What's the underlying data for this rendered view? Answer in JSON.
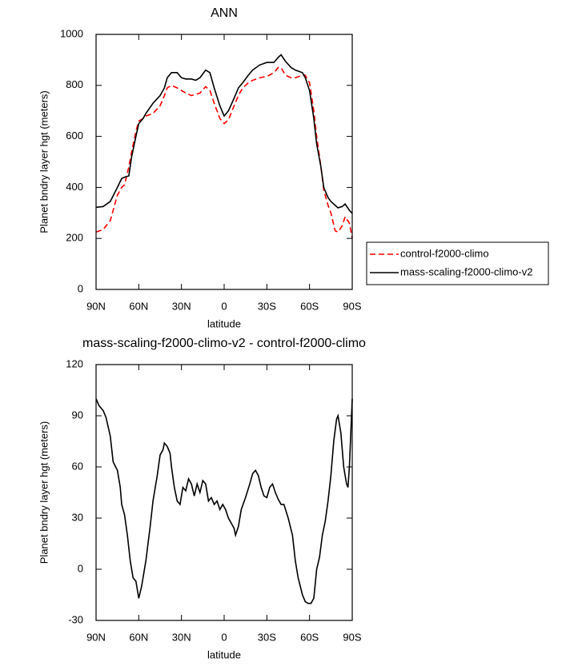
{
  "chart_data": [
    {
      "type": "line",
      "title": "ANN",
      "x_label": "latitude",
      "y_label": "Planet bndry layer hgt (meters)",
      "x": [
        90,
        85,
        80,
        75,
        72,
        70,
        67,
        65,
        62,
        60,
        57,
        55,
        50,
        45,
        42,
        40,
        37,
        33,
        30,
        27,
        23,
        20,
        17,
        13,
        10,
        7,
        3,
        0,
        -3,
        -7,
        -10,
        -13,
        -17,
        -20,
        -25,
        -30,
        -35,
        -38,
        -40,
        -43,
        -47,
        -50,
        -55,
        -57,
        -60,
        -63,
        -65,
        -68,
        -70,
        -73,
        -75,
        -78,
        -80,
        -83,
        -85,
        -88,
        -90
      ],
      "series": [
        {
          "name": "control-f2000-climo",
          "color": "#ff0000",
          "line_style": "dashed",
          "values": [
            225,
            235,
            270,
            370,
            400,
            410,
            480,
            540,
            620,
            660,
            670,
            680,
            690,
            720,
            760,
            790,
            800,
            790,
            780,
            770,
            760,
            765,
            770,
            795,
            780,
            730,
            670,
            650,
            665,
            720,
            760,
            790,
            810,
            820,
            830,
            835,
            850,
            870,
            870,
            840,
            830,
            830,
            840,
            840,
            810,
            700,
            600,
            480,
            390,
            330,
            300,
            230,
            225,
            250,
            285,
            260,
            200
          ]
        },
        {
          "name": "mass-scaling-f2000-climo-v2",
          "color": "#000000",
          "line_style": "solid",
          "values": [
            322,
            325,
            345,
            400,
            435,
            440,
            445,
            520,
            600,
            650,
            670,
            690,
            730,
            760,
            790,
            830,
            850,
            850,
            830,
            825,
            825,
            820,
            830,
            860,
            850,
            790,
            720,
            680,
            700,
            750,
            790,
            810,
            840,
            860,
            880,
            890,
            890,
            910,
            920,
            895,
            870,
            860,
            850,
            830,
            780,
            670,
            570,
            480,
            400,
            360,
            345,
            330,
            320,
            325,
            335,
            310,
            298
          ]
        }
      ],
      "xlim": [
        90,
        -90
      ],
      "xticks": [
        {
          "value": 90,
          "label": "90N"
        },
        {
          "value": 60,
          "label": "60N"
        },
        {
          "value": 30,
          "label": "30N"
        },
        0,
        {
          "value": -30,
          "label": "30S"
        },
        {
          "value": -60,
          "label": "60S"
        },
        {
          "value": -90,
          "label": "90S"
        }
      ],
      "ylim": [
        0,
        1000
      ],
      "yticks": [
        0,
        200,
        400,
        600,
        800,
        1000
      ],
      "legend": "right"
    },
    {
      "type": "line",
      "title": "mass-scaling-f2000-climo-v2 - control-f2000-climo",
      "x_label": "latitude",
      "y_label": "Planet bndry layer hgt (meters)",
      "x": [
        90,
        88,
        85,
        83,
        80,
        78,
        75,
        73,
        72,
        70,
        68,
        66,
        64,
        62,
        60,
        58,
        55,
        52,
        50,
        47,
        45,
        43,
        42,
        40,
        38,
        37,
        35,
        33,
        31,
        29,
        27,
        25,
        23,
        21,
        19,
        17,
        15,
        13,
        11,
        9,
        7,
        5,
        3,
        1,
        -1,
        -3,
        -5,
        -7,
        -8,
        -10,
        -12,
        -15,
        -18,
        -20,
        -22,
        -24,
        -26,
        -28,
        -30,
        -32,
        -34,
        -36,
        -38,
        -40,
        -42,
        -45,
        -48,
        -50,
        -52,
        -55,
        -57,
        -59,
        -61,
        -63,
        -65,
        -67,
        -69,
        -71,
        -73,
        -75,
        -77,
        -79,
        -80,
        -82,
        -84,
        -86,
        -87,
        -88,
        -90
      ],
      "series": [
        {
          "color": "#000000",
          "line_style": "solid",
          "values": [
            100,
            96,
            93,
            89,
            78,
            63,
            58,
            48,
            38,
            32,
            20,
            5,
            -5,
            -7,
            -17,
            -10,
            5,
            25,
            40,
            55,
            67,
            70,
            74,
            72,
            68,
            60,
            48,
            40,
            38,
            48,
            46,
            53,
            50,
            43,
            50,
            45,
            52,
            50,
            40,
            42,
            38,
            40,
            35,
            38,
            35,
            30,
            27,
            24,
            20,
            25,
            35,
            42,
            50,
            56,
            58,
            55,
            48,
            43,
            42,
            48,
            50,
            45,
            41,
            38,
            38,
            30,
            20,
            5,
            -5,
            -15,
            -19,
            -20,
            -20,
            -17,
            0,
            7,
            20,
            28,
            40,
            55,
            75,
            88,
            90,
            80,
            60,
            50,
            48,
            60,
            100
          ]
        }
      ],
      "xlim": [
        90,
        -90
      ],
      "xticks": [
        {
          "value": 90,
          "label": "90N"
        },
        {
          "value": 60,
          "label": "60N"
        },
        {
          "value": 30,
          "label": "30N"
        },
        0,
        {
          "value": -30,
          "label": "30S"
        },
        {
          "value": -60,
          "label": "60S"
        },
        {
          "value": -90,
          "label": "90S"
        }
      ],
      "ylim": [
        -30,
        120
      ],
      "yticks": [
        -30,
        0,
        30,
        60,
        90,
        120
      ]
    }
  ]
}
